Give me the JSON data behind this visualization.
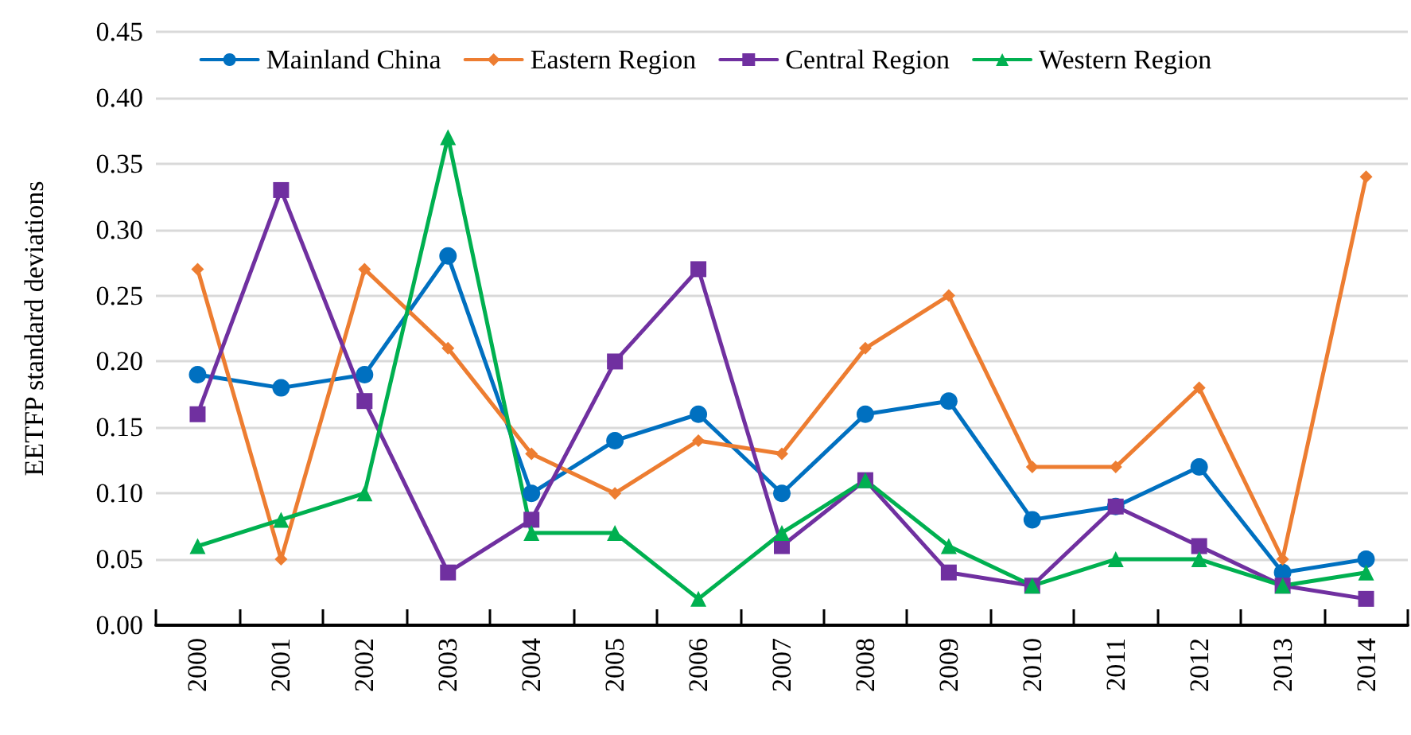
{
  "chart_data": {
    "type": "line",
    "ylabel": "EETFP standard deviations",
    "categories": [
      "2000",
      "2001",
      "2002",
      "2003",
      "2004",
      "2005",
      "2006",
      "2007",
      "2008",
      "2009",
      "2010",
      "2011",
      "2012",
      "2013",
      "2014"
    ],
    "series": [
      {
        "name": "Mainland China",
        "color": "#0070c0",
        "marker": "circle",
        "values": [
          0.19,
          0.18,
          0.19,
          0.28,
          0.1,
          0.14,
          0.16,
          0.1,
          0.16,
          0.17,
          0.08,
          0.09,
          0.12,
          0.04,
          0.05
        ]
      },
      {
        "name": "Eastern Region",
        "color": "#ed7d31",
        "marker": "diamond",
        "values": [
          0.27,
          0.05,
          0.27,
          0.21,
          0.13,
          0.1,
          0.14,
          0.13,
          0.21,
          0.25,
          0.12,
          0.12,
          0.18,
          0.05,
          0.34
        ]
      },
      {
        "name": "Central Region",
        "color": "#7030a0",
        "marker": "square",
        "values": [
          0.16,
          0.33,
          0.17,
          0.04,
          0.08,
          0.2,
          0.27,
          0.06,
          0.11,
          0.04,
          0.03,
          0.09,
          0.06,
          0.03,
          0.02
        ]
      },
      {
        "name": "Western Region",
        "color": "#00b050",
        "marker": "triangle",
        "values": [
          0.06,
          0.08,
          0.1,
          0.37,
          0.07,
          0.07,
          0.02,
          0.07,
          0.11,
          0.06,
          0.03,
          0.05,
          0.05,
          0.03,
          0.04
        ]
      }
    ],
    "ylim": [
      0,
      0.45
    ],
    "yticks": [
      {
        "value": 0,
        "label": "0.00"
      },
      {
        "value": 0.05,
        "label": "0.05"
      },
      {
        "value": 0.1,
        "label": "0.10"
      },
      {
        "value": 0.15,
        "label": "0.15"
      },
      {
        "value": 0.2,
        "label": "0.20"
      },
      {
        "value": 0.25,
        "label": "0.25"
      },
      {
        "value": 0.3,
        "label": "0.30"
      },
      {
        "value": 0.35,
        "label": "0.35"
      },
      {
        "value": 0.4,
        "label": "0.40"
      },
      {
        "value": 0.45,
        "label": "0.45"
      }
    ],
    "grid": "y",
    "legend": "top",
    "line_style": "solid"
  }
}
